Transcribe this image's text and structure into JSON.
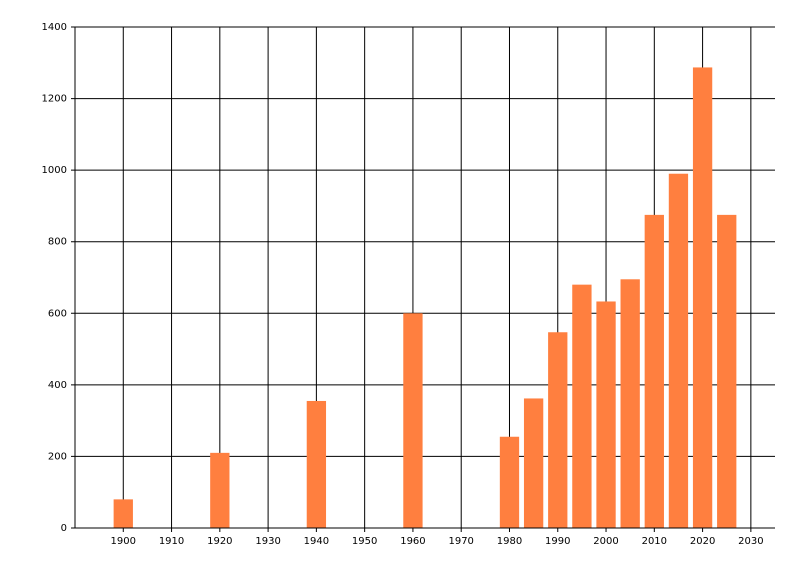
{
  "chart_data": {
    "type": "bar",
    "x": [
      1900,
      1920,
      1940,
      1960,
      1980,
      1985,
      1990,
      1995,
      2000,
      2005,
      2010,
      2015,
      2020,
      2025
    ],
    "values": [
      80,
      210,
      355,
      600,
      255,
      362,
      547,
      680,
      633,
      695,
      875,
      990,
      1287,
      875
    ],
    "color": "#ff7f3f",
    "xlim": [
      1890,
      2035
    ],
    "xticks": [
      1900,
      1910,
      1920,
      1930,
      1940,
      1950,
      1960,
      1970,
      1980,
      1990,
      2000,
      2010,
      2020,
      2030
    ],
    "ylim": [
      0,
      1400
    ],
    "yticks": [
      0,
      200,
      400,
      600,
      800,
      1000,
      1200,
      1400
    ],
    "grid": true
  }
}
